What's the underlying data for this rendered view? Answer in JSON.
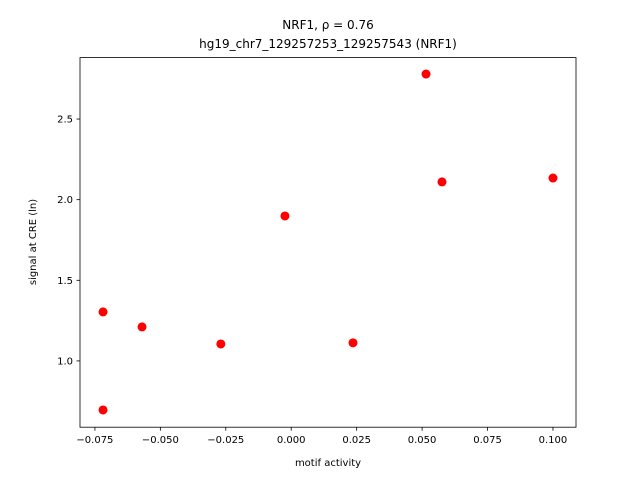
{
  "chart_data": {
    "type": "scatter",
    "title": "NRF1, ρ = 0.76",
    "subtitle": "hg19_chr7_129257253_129257543 (NRF1)",
    "x_label": "motif activity",
    "y_label": "signal at CRE (ln)",
    "color": "#ff0000",
    "x": [
      -0.0719,
      -0.0719,
      -0.057,
      -0.0269,
      -0.0024,
      0.0236,
      0.0515,
      0.0576,
      0.1
    ],
    "values": [
      1.304,
      0.696,
      1.211,
      1.105,
      1.899,
      1.112,
      2.779,
      2.11,
      2.134
    ],
    "xlim": [
      -0.0807,
      0.1088
    ],
    "ylim": [
      0.589,
      2.881
    ],
    "xticks": [
      {
        "value": -0.075,
        "label": "−0.075"
      },
      {
        "value": -0.05,
        "label": "−0.050"
      },
      {
        "value": -0.025,
        "label": "−0.025"
      },
      {
        "value": 0,
        "label": "0.000"
      },
      0.025,
      {
        "value": 0.05,
        "label": "0.050"
      },
      0.075,
      {
        "value": 0.1,
        "label": "0.100"
      }
    ],
    "yticks": [
      {
        "value": 1,
        "label": "1.0"
      },
      1.5,
      {
        "value": 2,
        "label": "2.0"
      },
      2.5
    ],
    "grid": false
  }
}
